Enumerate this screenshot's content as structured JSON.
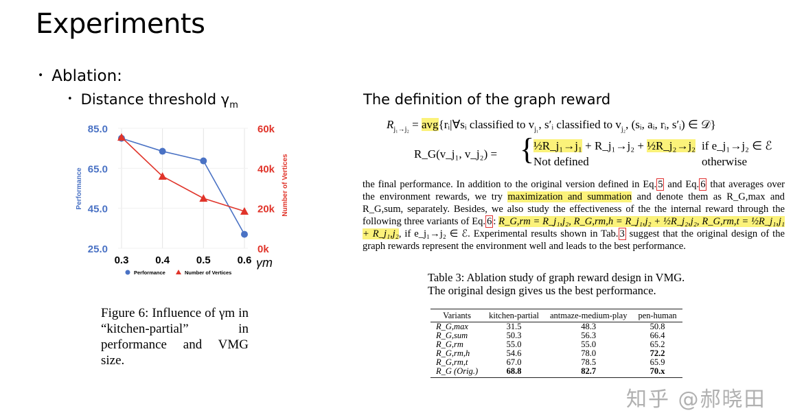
{
  "slide": {
    "title": "Experiments",
    "bullet1": "Ablation:",
    "bullet2": "Distance threshold γ",
    "bullet2_sub": "m",
    "definition_title": "The definition of the graph reward"
  },
  "equations": {
    "eq1_lhs": "R",
    "eq1_lhs_sub": "j₁→j₂",
    "eq1_avg": "avg",
    "eq1_rest": "{rᵢ|∀sᵢ classified to v",
    "eq1_rest2": ", s′ᵢ classified to v",
    "eq1_rest3": ", (sᵢ, aᵢ, rᵢ, s′ᵢ) ∈ 𝒟}",
    "eq2_lhs": "R_G(v_j₁, v_j₂) =",
    "eq2_case1_a": "½R_j₁→j₁",
    "eq2_case1_b": "+ R_j₁→j₂ +",
    "eq2_case1_c": "½R_j₂→j₂",
    "eq2_cond1": "if e_j₁→j₂ ∈ ℰ",
    "eq2_case2": "Not defined",
    "eq2_cond2": "otherwise"
  },
  "paragraph": {
    "p1": "the final performance. In addition to the original version defined in Eq.",
    "ref5": "5",
    "p2": " and Eq.",
    "ref6": "6",
    "p3": " that averages over the environment rewards, we try ",
    "hl1": "maximization and summation",
    "p4": " and denote them as R_G,max and R_G,sum, separately. Besides, we also study the effectiveness of the the internal reward through the following three variants of Eq.",
    "ref6b": "6",
    "p5": ": ",
    "hl2": "R_G,rm = R_j₁,j₂, R_G,rm,h = R_j₁,j₂ + ½R_j₂,j₂, R_G,rm,t = ½R_j₁,j₁ + R_j₁,j₂",
    "p6": ", if e_j₁→j₂ ∈ ℰ. Experimental results shown in Tab.",
    "ref3": "3",
    "p7": " suggest that the original design of the graph rewards represent the environment well and leads to the best performance."
  },
  "figure_caption": "Figure 6: Influence of γm in “kitchen-partial” in performance and VMG size.",
  "table": {
    "caption_line1": "Table 3: Ablation study of graph reward design in VMG.",
    "caption_line2": "The original design gives us the best performance.",
    "headers": [
      "Variants",
      "kitchen-partial",
      "antmaze-medium-play",
      "pen-human"
    ],
    "rows": [
      [
        "R_G,max",
        "31.5",
        "48.3",
        "50.8"
      ],
      [
        "R_G,sum",
        "50.3",
        "56.3",
        "66.4"
      ],
      [
        "R_G,rm",
        "55.0",
        "55.0",
        "65.2"
      ],
      [
        "R_G,rm,h",
        "54.6",
        "78.0",
        "72.2"
      ],
      [
        "R_G,rm,t",
        "67.0",
        "78.5",
        "65.9"
      ],
      [
        "R_G (Orig.)",
        "68.8",
        "82.7",
        "70.x"
      ]
    ]
  },
  "watermark": "知乎 @郝晓田",
  "chart_data": {
    "type": "line",
    "x": [
      0.3,
      0.4,
      0.5,
      0.6
    ],
    "x_tick_labels": [
      "0.3",
      "0.4",
      "0.5",
      "0.6"
    ],
    "xlabel": "γm",
    "ylabel_left": "Performance",
    "ylabel_right": "Number of Vertices",
    "ylim_left": [
      25,
      85
    ],
    "yticks_left": [
      "85.0",
      "65.0",
      "45.0",
      "25.0"
    ],
    "ylim_right": [
      0,
      60000
    ],
    "yticks_right": [
      "60k",
      "40k",
      "20k",
      "0k"
    ],
    "grid": true,
    "legend_position": "bottom",
    "series": [
      {
        "name": "Performance",
        "axis": "left",
        "marker": "circle",
        "color": "#4a72c4",
        "values": [
          80.0,
          73.5,
          68.7,
          32.0
        ]
      },
      {
        "name": "Number of Vertices",
        "axis": "right",
        "marker": "triangle",
        "color": "#e0342a",
        "values": [
          55500,
          36000,
          25000,
          18500
        ]
      }
    ]
  }
}
